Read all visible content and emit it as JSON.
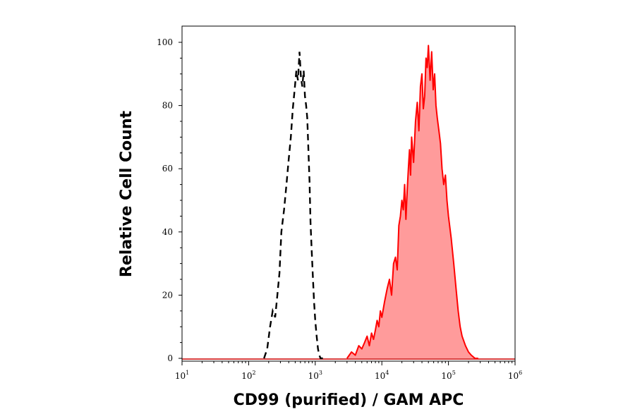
{
  "chart_data": {
    "type": "histogram",
    "title": "",
    "xlabel": "CD99 (purified) / GAM APC",
    "ylabel": "Relative Cell Count",
    "x_scale": "log",
    "xlim": [
      10,
      1000000
    ],
    "ylim": [
      0,
      100
    ],
    "x_ticks": [
      {
        "base": "10",
        "exp": "1",
        "value": 10
      },
      {
        "base": "10",
        "exp": "2",
        "value": 100
      },
      {
        "base": "10",
        "exp": "3",
        "value": 1000
      },
      {
        "base": "10",
        "exp": "4",
        "value": 10000
      },
      {
        "base": "10",
        "exp": "5",
        "value": 100000
      },
      {
        "base": "10",
        "exp": "6",
        "value": 1000000
      }
    ],
    "y_ticks": [
      "0",
      "20",
      "40",
      "60",
      "80",
      "100"
    ],
    "series": [
      {
        "style": "dashed",
        "color": "#000000",
        "x": [
          170,
          190,
          210,
          230,
          250,
          270,
          290,
          310,
          340,
          370,
          400,
          430,
          460,
          490,
          520,
          550,
          580,
          610,
          640,
          670,
          700,
          730,
          760,
          790,
          820,
          850,
          880,
          920,
          960,
          1000,
          1050,
          1100,
          1150,
          1200,
          1300
        ],
        "y": [
          0,
          3,
          10,
          15,
          13,
          20,
          27,
          40,
          47,
          55,
          63,
          70,
          79,
          85,
          91,
          88,
          97,
          89,
          86,
          91,
          83,
          80,
          76,
          66,
          56,
          43,
          35,
          26,
          18,
          12,
          7,
          3,
          1,
          0,
          0
        ]
      },
      {
        "style": "filled",
        "color": "#ff0000",
        "fill": "#ff9b9b",
        "x": [
          3000,
          3500,
          4000,
          4500,
          5000,
          5500,
          6000,
          6500,
          7000,
          7500,
          8000,
          8500,
          9000,
          9500,
          10000,
          11000,
          12000,
          13000,
          14000,
          15000,
          16000,
          17000,
          18000,
          19000,
          20000,
          21000,
          22000,
          23000,
          24000,
          25000,
          26000,
          27000,
          28000,
          30000,
          32000,
          34000,
          36000,
          38000,
          40000,
          42000,
          44000,
          46000,
          48000,
          50000,
          53000,
          56000,
          59000,
          62000,
          65000,
          68000,
          72000,
          76000,
          80000,
          85000,
          90000,
          95000,
          100000,
          110000,
          120000,
          130000,
          140000,
          150000,
          160000,
          180000,
          200000,
          220000,
          250000,
          280000
        ],
        "y": [
          0,
          2,
          1,
          4,
          3,
          5,
          7,
          4,
          8,
          6,
          9,
          12,
          10,
          15,
          13,
          18,
          22,
          25,
          20,
          30,
          32,
          28,
          42,
          45,
          50,
          47,
          55,
          44,
          53,
          60,
          66,
          58,
          70,
          62,
          75,
          81,
          72,
          86,
          90,
          79,
          83,
          95,
          92,
          99,
          88,
          97,
          85,
          90,
          80,
          76,
          72,
          68,
          60,
          55,
          58,
          50,
          45,
          38,
          30,
          22,
          15,
          10,
          7,
          4,
          2,
          1,
          0,
          0
        ]
      }
    ]
  }
}
